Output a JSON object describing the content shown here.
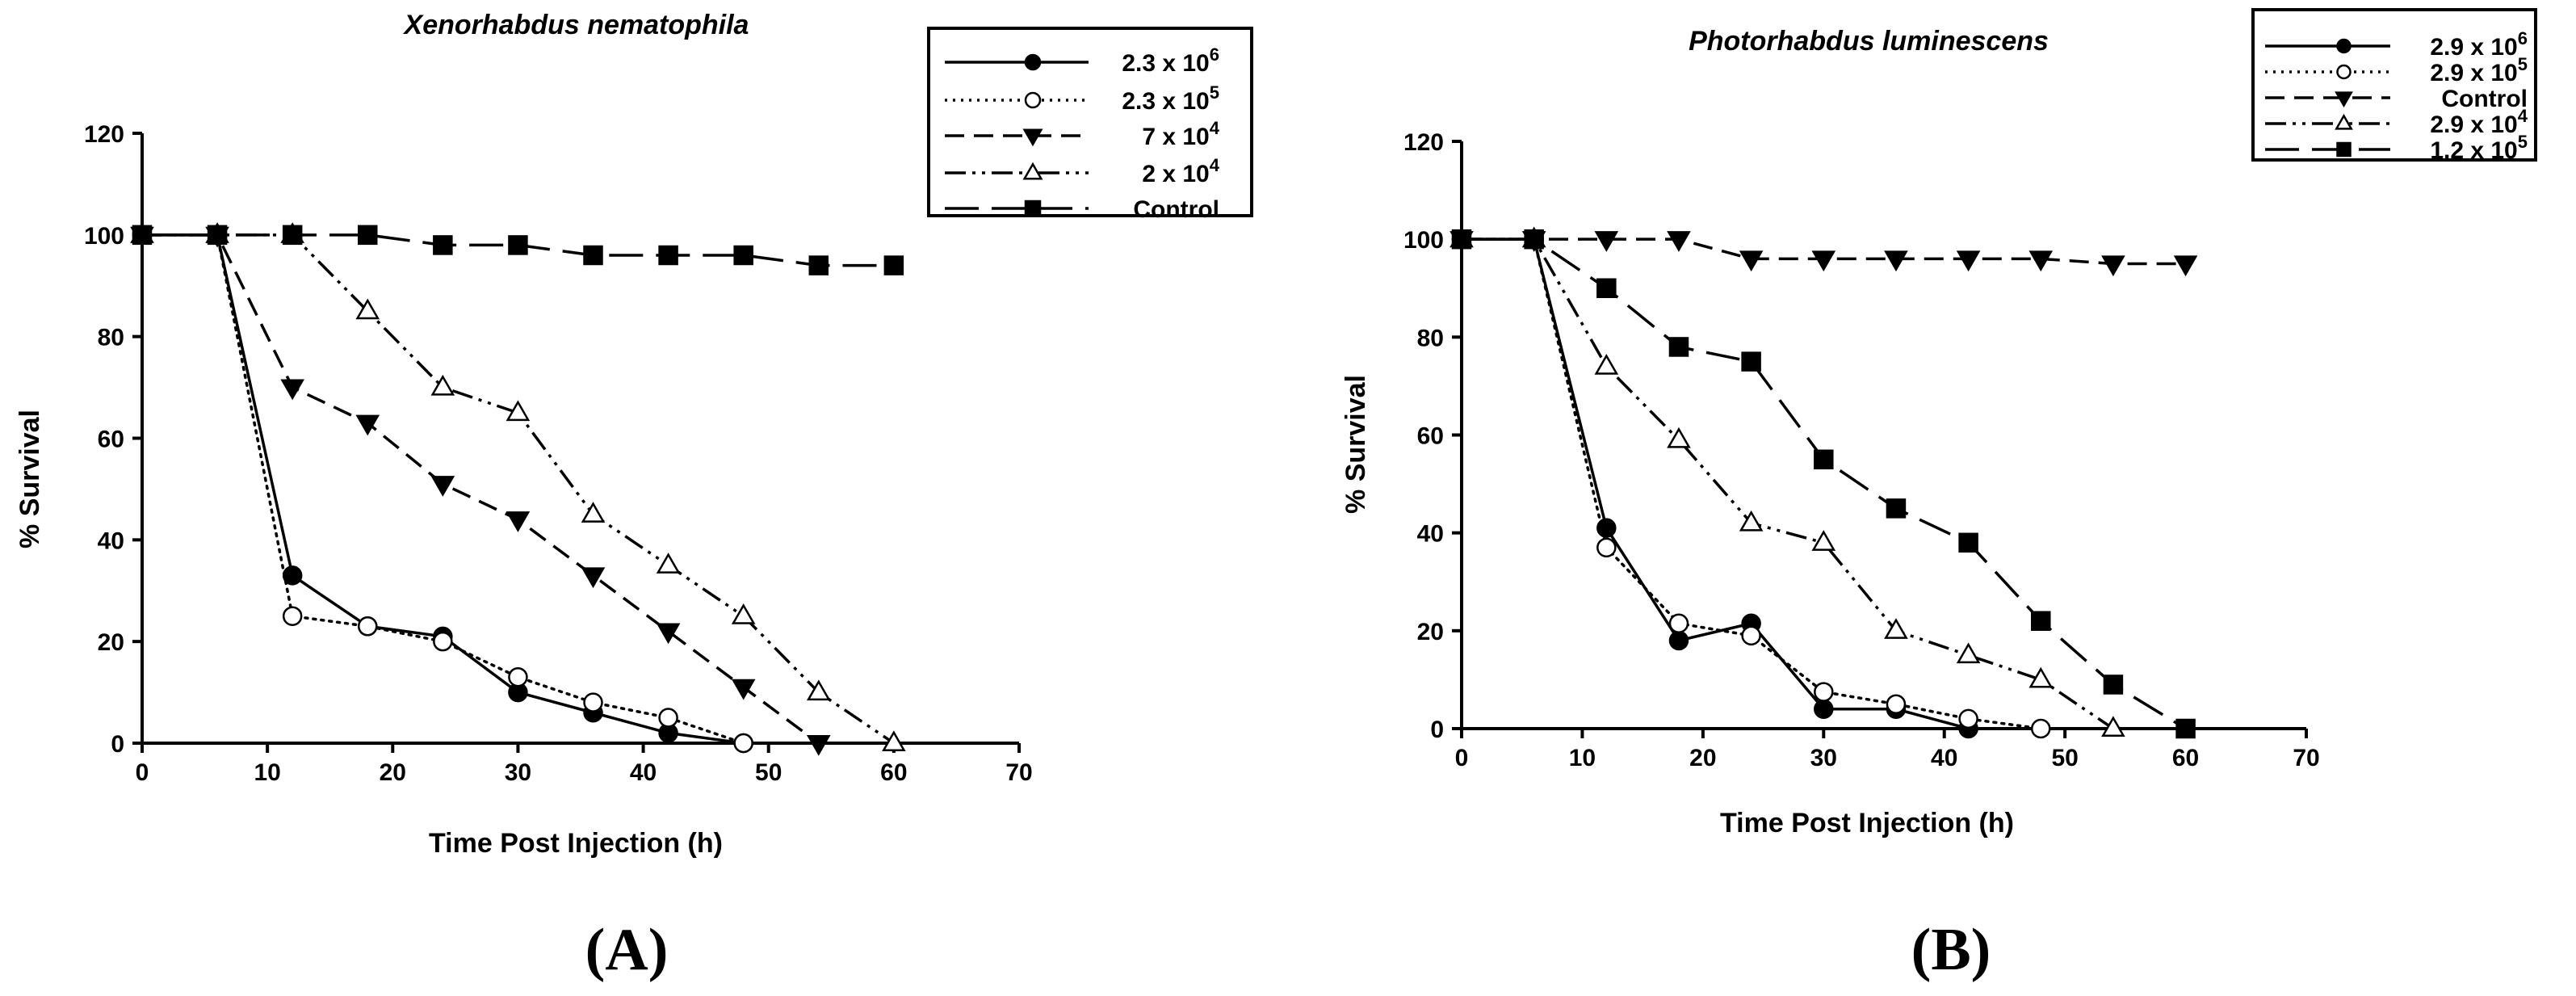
{
  "chart_data": [
    {
      "type": "line",
      "title": "Xenorhabdus nematophila",
      "xlabel": "Time Post Injection (h)",
      "ylabel": "% Survival",
      "xlim": [
        0,
        70
      ],
      "ylim": [
        0,
        120
      ],
      "xticks": [
        0,
        10,
        20,
        30,
        40,
        50,
        60,
        70
      ],
      "yticks": [
        0,
        20,
        40,
        60,
        80,
        100,
        120
      ],
      "legend_position": "top-right",
      "panel_label": "(A)",
      "series": [
        {
          "name_base": "2.3 x 10",
          "name_exp": "6",
          "linestyle": "solid",
          "marker": "filled-circle",
          "x": [
            0,
            6,
            12,
            18,
            24,
            30,
            36,
            42,
            48
          ],
          "y": [
            100,
            100,
            33,
            23,
            21,
            10,
            6,
            2,
            0
          ]
        },
        {
          "name_base": "2.3 x 10",
          "name_exp": "5",
          "linestyle": "dotted",
          "marker": "open-circle",
          "x": [
            0,
            6,
            12,
            18,
            24,
            30,
            36,
            42,
            48
          ],
          "y": [
            100,
            100,
            25,
            23,
            20,
            13,
            8,
            5,
            0
          ]
        },
        {
          "name_base": "7 x 10",
          "name_exp": "4",
          "linestyle": "dashed",
          "marker": "filled-triangle-down",
          "x": [
            0,
            6,
            12,
            18,
            24,
            30,
            36,
            42,
            48,
            54
          ],
          "y": [
            100,
            100,
            70,
            63,
            51,
            44,
            33,
            22,
            11,
            0
          ]
        },
        {
          "name_base": "2 x 10",
          "name_exp": "4",
          "linestyle": "dash-dot-dot",
          "marker": "open-triangle-up",
          "x": [
            0,
            6,
            12,
            18,
            24,
            30,
            36,
            42,
            48,
            54,
            60
          ],
          "y": [
            100,
            100,
            100,
            85,
            70,
            65,
            45,
            35,
            25,
            10,
            0
          ]
        },
        {
          "name_base": "Control",
          "name_exp": "",
          "linestyle": "long-dash",
          "marker": "filled-square",
          "x": [
            0,
            6,
            12,
            18,
            24,
            30,
            36,
            42,
            48,
            54,
            60
          ],
          "y": [
            100,
            100,
            100,
            100,
            98,
            98,
            96,
            96,
            96,
            94,
            94
          ]
        }
      ]
    },
    {
      "type": "line",
      "title": "Photorhabdus luminescens",
      "xlabel": "Time Post Injection (h)",
      "ylabel": "% Survival",
      "xlim": [
        0,
        70
      ],
      "ylim": [
        0,
        120
      ],
      "xticks": [
        0,
        10,
        20,
        30,
        40,
        50,
        60,
        70
      ],
      "yticks": [
        0,
        20,
        40,
        60,
        80,
        100,
        120
      ],
      "legend_position": "top-right",
      "panel_label": "(B)",
      "series": [
        {
          "name_base": "2.9 x 10",
          "name_exp": "6",
          "linestyle": "solid",
          "marker": "filled-circle",
          "x": [
            0,
            6,
            12,
            18,
            24,
            30,
            36,
            42
          ],
          "y": [
            100,
            100,
            41,
            18,
            21.5,
            4,
            4,
            0
          ]
        },
        {
          "name_base": "2.9 x 10",
          "name_exp": "5",
          "linestyle": "dotted",
          "marker": "open-circle",
          "x": [
            0,
            6,
            12,
            18,
            24,
            30,
            36,
            42,
            48
          ],
          "y": [
            100,
            100,
            37,
            21.5,
            19,
            7.5,
            5,
            2,
            0
          ]
        },
        {
          "name_base": "Control",
          "name_exp": "",
          "linestyle": "dashed",
          "marker": "filled-triangle-down",
          "x": [
            0,
            6,
            12,
            18,
            24,
            30,
            36,
            42,
            48,
            54,
            60
          ],
          "y": [
            100,
            100,
            100,
            100,
            96,
            96,
            96,
            96,
            96,
            95,
            95
          ]
        },
        {
          "name_base": "2.9 x 10",
          "name_exp": "4",
          "linestyle": "dash-dot-dot",
          "marker": "open-triangle-up",
          "x": [
            0,
            6,
            12,
            18,
            24,
            30,
            36,
            42,
            48,
            54
          ],
          "y": [
            100,
            100,
            74,
            59,
            42,
            38,
            20,
            15,
            10,
            0
          ]
        },
        {
          "name_base": "1.2 x 10",
          "name_exp": "5",
          "linestyle": "long-dash",
          "marker": "filled-square",
          "x": [
            0,
            6,
            12,
            18,
            24,
            30,
            36,
            42,
            48,
            54,
            60
          ],
          "y": [
            100,
            100,
            90,
            78,
            75,
            55,
            45,
            38,
            22,
            9,
            0
          ]
        }
      ]
    }
  ]
}
